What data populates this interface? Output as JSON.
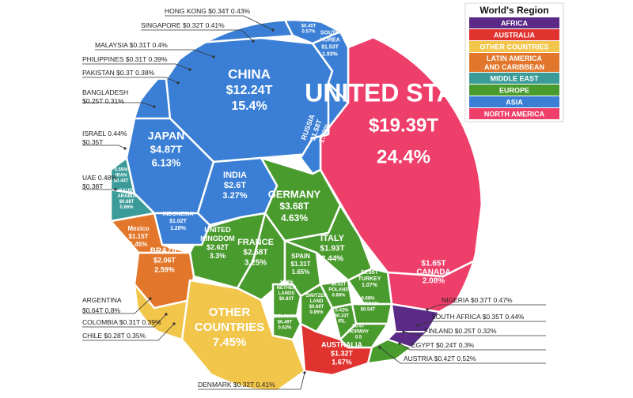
{
  "chart_data": {
    "type": "voronoi-treemap",
    "title": "",
    "legend": {
      "title": "World's Region",
      "placement": "top-right",
      "items": [
        {
          "name": "AFRICA",
          "color": "#5b2a86"
        },
        {
          "name": "AUSTRALIA",
          "color": "#e0322f"
        },
        {
          "name": "OTHER COUNTRIES",
          "color": "#f2c64b"
        },
        {
          "name": "LATIN AMERICA AND CARIBBEAN",
          "color": "#e2772b"
        },
        {
          "name": "MIDDLE EAST",
          "color": "#3a9b98"
        },
        {
          "name": "EUROPE",
          "color": "#4a9b2e"
        },
        {
          "name": "ASIA",
          "color": "#3a7fd5"
        },
        {
          "name": "NORTH AMERICA",
          "color": "#ee3e6a"
        }
      ]
    },
    "cells": [
      {
        "name": "UNITED STATES",
        "gdp": "$19.39T",
        "share": "24.4%",
        "region": "NORTH AMERICA"
      },
      {
        "name": "CHINA",
        "gdp": "$12.24T",
        "share": "15.4%",
        "region": "ASIA"
      },
      {
        "name": "JAPAN",
        "gdp": "$4.87T",
        "share": "6.13%",
        "region": "ASIA"
      },
      {
        "name": "GERMANY",
        "gdp": "$3.68T",
        "share": "4.63%",
        "region": "EUROPE"
      },
      {
        "name": "INDIA",
        "gdp": "$2.6T",
        "share": "3.27%",
        "region": "ASIA"
      },
      {
        "name": "UNITED KINGDOM",
        "gdp": "$2.62T",
        "share": "3.3%",
        "region": "EUROPE"
      },
      {
        "name": "FRANCE",
        "gdp": "$2.58T",
        "share": "3.25%",
        "region": "EUROPE"
      },
      {
        "name": "BRAZIL",
        "gdp": "$2.06T",
        "share": "2.59%",
        "region": "LATIN AMERICA AND CARIBBEAN"
      },
      {
        "name": "ITALY",
        "gdp": "$1.93T",
        "share": "2.44%",
        "region": "EUROPE"
      },
      {
        "name": "CANADA",
        "gdp": "$1.65T",
        "share": "2.08%",
        "region": "NORTH AMERICA"
      },
      {
        "name": "RUSSIA",
        "gdp": "$1.58T",
        "share": "1.99%",
        "region": "ASIA"
      },
      {
        "name": "SOUTH KOREA",
        "gdp": "$1.53T",
        "share": "1.93%",
        "region": "ASIA"
      },
      {
        "name": "AUSTRALIA",
        "gdp": "$1.32T",
        "share": "1.67%",
        "region": "AUSTRALIA"
      },
      {
        "name": "SPAIN",
        "gdp": "$1.31T",
        "share": "1.65%",
        "region": "EUROPE"
      },
      {
        "name": "Mexico",
        "gdp": "$1.15T",
        "share": "1.45%",
        "region": "LATIN AMERICA AND CARIBBEAN"
      },
      {
        "name": "INDONESIA",
        "gdp": "$1.02T",
        "share": "1.28%",
        "region": "ASIA"
      },
      {
        "name": "TURKEY",
        "gdp": "$0.85T",
        "share": "1.07%",
        "region": "EUROPE"
      },
      {
        "name": "NETHERLANDS",
        "gdp": "$0.83T",
        "share": "1.04%",
        "region": "EUROPE"
      },
      {
        "name": "SAUDI ARABIA",
        "gdp": "$0.68T",
        "share": "0.86%",
        "region": "MIDDLE EAST"
      },
      {
        "name": "SWITZERLAND",
        "gdp": "$0.68T",
        "share": "0.85%",
        "region": "EUROPE"
      },
      {
        "name": "SWEDEN",
        "gdp": "$0.54T",
        "share": "0.68%",
        "region": "EUROPE"
      },
      {
        "name": "POLAND",
        "gdp": "$0.52T",
        "share": "0.66%",
        "region": "EUROPE"
      },
      {
        "name": "BELGIUM",
        "gdp": "$0.49T",
        "share": "0.62%",
        "region": "EUROPE"
      },
      {
        "name": "IRAN",
        "gdp": "$0.44T",
        "share": "0.55%",
        "region": "MIDDLE EAST"
      },
      {
        "name": "THAILAND",
        "gdp": "$0.45T",
        "share": "0.57%",
        "region": "ASIA"
      },
      {
        "name": "IRL",
        "gdp": "$0.33T",
        "share": "0.42%",
        "region": "EUROPE"
      },
      {
        "name": "NORWAY",
        "gdp": "$0.4T",
        "share": "0.5",
        "region": "EUROPE"
      },
      {
        "name": "OTHER COUNTRIES",
        "gdp": "",
        "share": "7.45%",
        "region": "OTHER COUNTRIES"
      }
    ],
    "callouts": [
      {
        "text": "HONG KONG $0.34T 0.43%",
        "region": "ASIA"
      },
      {
        "text": "SINGAPORE $0.32T 0.41%",
        "region": "ASIA"
      },
      {
        "text": "MALAYSIA $0.31T 0.4%",
        "region": "ASIA"
      },
      {
        "text": "PHILIPPINES $0.31T 0.39%",
        "region": "ASIA"
      },
      {
        "text": "PAKISTAN $0.3T 0.38%",
        "region": "ASIA"
      },
      {
        "text": "BANGLADESH",
        "text2": "$0.25T 0.31%",
        "region": "ASIA"
      },
      {
        "text": "ISRAEL 0.44%",
        "text2": "$0.35T",
        "region": "MIDDLE EAST"
      },
      {
        "text": "UAE 0.48%",
        "text2": "$0.38T",
        "region": "MIDDLE EAST"
      },
      {
        "text": "ARGENTINA",
        "text2": "$0.64T 0.8%",
        "region": "LATIN AMERICA AND CARIBBEAN"
      },
      {
        "text": "COLOMBIA $0.31T 0.39%",
        "region": "LATIN AMERICA AND CARIBBEAN"
      },
      {
        "text": "CHILE $0.28T 0.35%",
        "region": "LATIN AMERICA AND CARIBBEAN"
      },
      {
        "text": "NIGERIA $0.37T 0.47%",
        "region": "AFRICA"
      },
      {
        "text": "SOUTH AFRICA $0.35T 0.44%",
        "region": "AFRICA"
      },
      {
        "text": "FINLAND $0.25T 0.32%",
        "region": "EUROPE"
      },
      {
        "text": "EGYPT $0.24T 0.3%",
        "region": "AFRICA"
      },
      {
        "text": "AUSTRIA $0.42T 0.52%",
        "region": "EUROPE"
      },
      {
        "text": "DENMARK $0.32T 0.41%",
        "region": "EUROPE"
      }
    ]
  }
}
